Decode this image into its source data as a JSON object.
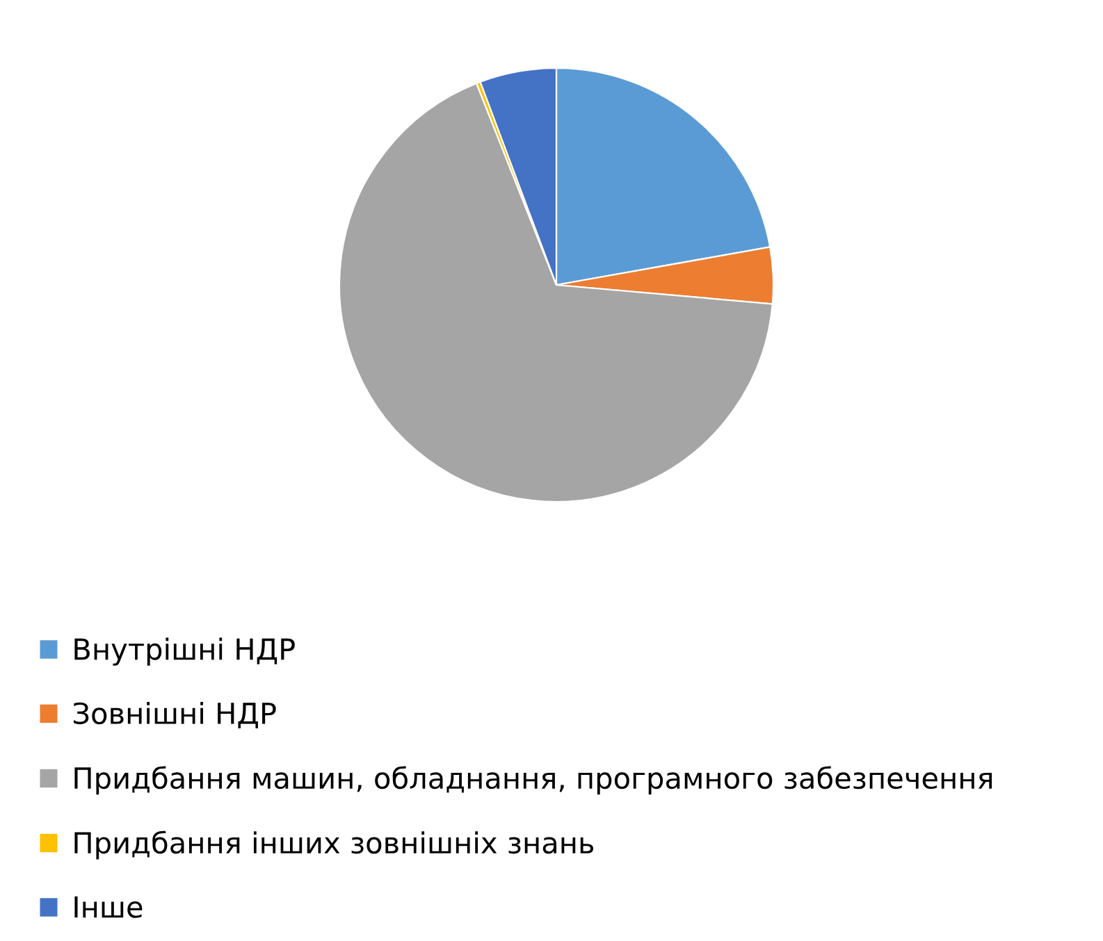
{
  "chart_data": {
    "type": "pie",
    "categories": [
      "Внутрішні НДР",
      "Зовнішні НДР",
      "Придбання машин, обладнання, програмного забезпечення",
      "Придбання інших зовнішніх знань",
      "Інше"
    ],
    "values": [
      22.2,
      4.2,
      67.6,
      0.3,
      5.7
    ],
    "colors": [
      "#5b9bd5",
      "#ed7d31",
      "#a5a5a5",
      "#ffc000",
      "#4472c4"
    ],
    "legend": "bottom"
  }
}
